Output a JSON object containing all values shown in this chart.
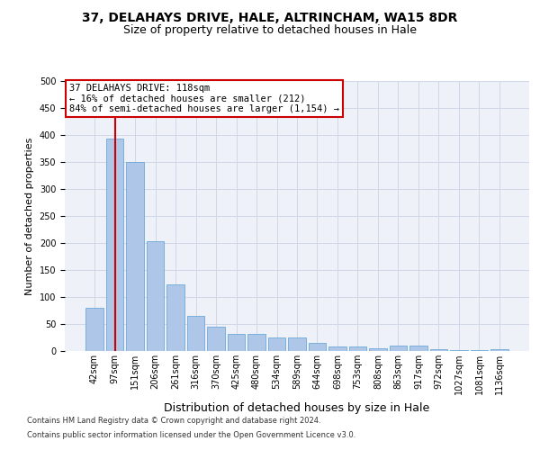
{
  "title_line1": "37, DELAHAYS DRIVE, HALE, ALTRINCHAM, WA15 8DR",
  "title_line2": "Size of property relative to detached houses in Hale",
  "xlabel": "Distribution of detached houses by size in Hale",
  "ylabel": "Number of detached properties",
  "footnote1": "Contains HM Land Registry data © Crown copyright and database right 2024.",
  "footnote2": "Contains public sector information licensed under the Open Government Licence v3.0.",
  "bin_labels": [
    "42sqm",
    "97sqm",
    "151sqm",
    "206sqm",
    "261sqm",
    "316sqm",
    "370sqm",
    "425sqm",
    "480sqm",
    "534sqm",
    "589sqm",
    "644sqm",
    "698sqm",
    "753sqm",
    "808sqm",
    "863sqm",
    "917sqm",
    "972sqm",
    "1027sqm",
    "1081sqm",
    "1136sqm"
  ],
  "bar_values": [
    80,
    393,
    350,
    204,
    123,
    65,
    45,
    32,
    32,
    25,
    25,
    15,
    8,
    8,
    5,
    10,
    10,
    4,
    2,
    2,
    3
  ],
  "bar_color": "#aec6e8",
  "bar_edge_color": "#5a9fd4",
  "vline_x": 1,
  "vline_color": "#cc0000",
  "annotation_text": "37 DELAHAYS DRIVE: 118sqm\n← 16% of detached houses are smaller (212)\n84% of semi-detached houses are larger (1,154) →",
  "annotation_box_color": "#ffffff",
  "annotation_box_edge": "#cc0000",
  "ylim": [
    0,
    500
  ],
  "yticks": [
    0,
    50,
    100,
    150,
    200,
    250,
    300,
    350,
    400,
    450,
    500
  ],
  "grid_color": "#d0d8e8",
  "bg_color": "#eef2f8",
  "title_fontsize": 10,
  "subtitle_fontsize": 9,
  "axis_label_fontsize": 8,
  "tick_fontsize": 7,
  "footnote_fontsize": 6
}
